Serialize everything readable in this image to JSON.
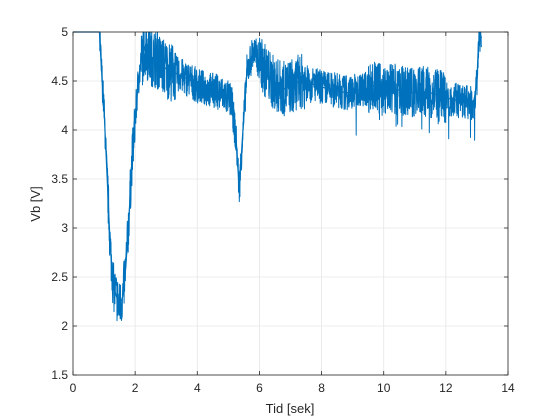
{
  "chart_data": {
    "type": "line",
    "xlabel": "Tid [sek]",
    "ylabel": "Vb [V]",
    "xlim": [
      0,
      14
    ],
    "ylim": [
      1.5,
      5
    ],
    "xticks": [
      0,
      2,
      4,
      6,
      8,
      10,
      12,
      14
    ],
    "yticks": [
      1.5,
      2,
      2.5,
      3,
      3.5,
      4,
      4.5,
      5
    ],
    "xtick_labels": [
      "0",
      "2",
      "4",
      "6",
      "8",
      "10",
      "12",
      "14"
    ],
    "ytick_labels": [
      "1.5",
      "2",
      "2.5",
      "3",
      "3.5",
      "4",
      "4.5",
      "5"
    ],
    "grid": true,
    "line_color": "#0072BD",
    "series": [
      {
        "x": [
          0,
          0.85,
          0.9,
          1.0,
          1.1,
          1.2,
          1.3,
          1.4,
          1.5,
          1.6,
          1.7,
          1.8,
          1.9,
          2.0,
          2.1,
          2.2,
          2.3,
          2.4,
          2.5,
          2.7,
          2.9,
          3.1,
          3.3,
          3.5,
          3.8,
          4.0,
          4.3,
          4.6,
          4.9,
          5.1,
          5.25,
          5.35,
          5.45,
          5.6,
          5.8,
          6.0,
          6.2,
          6.4,
          6.6,
          6.8,
          7.0,
          7.3,
          7.6,
          7.9,
          8.2,
          8.5,
          8.8,
          9.1,
          9.4,
          9.7,
          10.0,
          10.3,
          10.6,
          10.9,
          11.2,
          11.5,
          11.8,
          12.1,
          12.4,
          12.7,
          12.9,
          13.0,
          13.05,
          13.15
        ],
        "y": [
          5,
          5,
          4.7,
          4.2,
          3.5,
          2.8,
          2.4,
          2.3,
          2.2,
          2.3,
          2.6,
          3.1,
          3.7,
          4.1,
          4.5,
          4.7,
          4.85,
          4.8,
          4.75,
          4.72,
          4.65,
          4.6,
          4.58,
          4.55,
          4.5,
          4.45,
          4.42,
          4.4,
          4.35,
          4.3,
          3.9,
          3.4,
          3.9,
          4.6,
          4.8,
          4.7,
          4.6,
          4.5,
          4.45,
          4.42,
          4.45,
          4.5,
          4.48,
          4.45,
          4.42,
          4.4,
          4.38,
          4.4,
          4.42,
          4.45,
          4.4,
          4.42,
          4.4,
          4.38,
          4.4,
          4.38,
          4.35,
          4.32,
          4.3,
          4.28,
          4.28,
          4.5,
          4.9,
          4.95
        ]
      }
    ]
  }
}
